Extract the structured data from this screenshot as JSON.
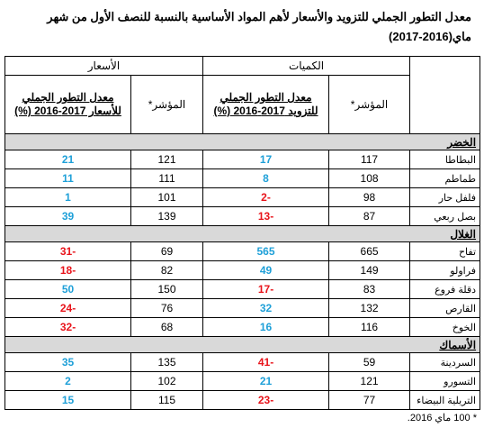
{
  "header": {
    "title_lines": [
      "معدل التطور الجملي للتزويد والأسعار لأهم المواد الأساسية بالنسبة للنصف الأول من شهر",
      "ماي(2016-2017)"
    ]
  },
  "table": {
    "groups": [
      "الكميات",
      "الأسعار"
    ],
    "subheaders": [
      "المؤشر*",
      "معدل التطور الجملي للتزويد 2017-2016 (%)",
      "المؤشر*",
      "معدل التطور الجملي للأسعار 2017-2016 (%)"
    ],
    "sections": [
      {
        "name": "الخضر",
        "rows": [
          [
            "البطاطا",
            117,
            17,
            121,
            21
          ],
          [
            "طماطم",
            108,
            8,
            111,
            11
          ],
          [
            "فلفل حار",
            98,
            -2,
            101,
            1
          ],
          [
            "بصل ربعي",
            87,
            -13,
            139,
            39
          ]
        ]
      },
      {
        "name": "الغلال",
        "rows": [
          [
            "تفاح",
            665,
            565,
            69,
            -31
          ],
          [
            "فراولو",
            149,
            49,
            82,
            -18
          ],
          [
            "دقلة فروع",
            83,
            -17,
            150,
            50
          ],
          [
            "القارص",
            132,
            32,
            76,
            -24
          ],
          [
            "الخوخ",
            116,
            16,
            68,
            -32
          ]
        ]
      },
      {
        "name": "الأسماك",
        "rows": [
          [
            "السردينة",
            59,
            -41,
            135,
            35
          ],
          [
            "التسورو",
            121,
            21,
            102,
            2
          ],
          [
            "التريلية البيضاء",
            77,
            -23,
            115,
            15
          ]
        ]
      }
    ]
  },
  "footnote": "* 100 ماي 2016."
}
